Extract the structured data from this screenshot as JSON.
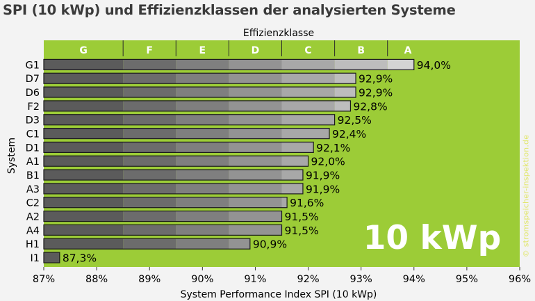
{
  "chart_data": {
    "type": "bar",
    "orientation": "horizontal",
    "title": "SPI (10 kWp) und Effizienzklassen der analysierten Systeme",
    "top_axis_label": "Effizienzklasse",
    "xlabel": "System Performance Index SPI (10 kWp)",
    "ylabel": "System",
    "xlim": [
      87,
      96
    ],
    "x_ticks": [
      "87%",
      "88%",
      "89%",
      "90%",
      "91%",
      "92%",
      "93%",
      "94%",
      "95%",
      "96%"
    ],
    "tick_values": [
      87,
      88,
      89,
      90,
      91,
      92,
      93,
      94,
      95,
      96
    ],
    "efficiency_classes": [
      {
        "name": "G",
        "from": 87.0,
        "to": 88.5,
        "color": "#5b5b5b"
      },
      {
        "name": "F",
        "from": 88.5,
        "to": 89.5,
        "color": "#6c6c6c"
      },
      {
        "name": "E",
        "from": 89.5,
        "to": 90.5,
        "color": "#7f7f7f"
      },
      {
        "name": "D",
        "from": 90.5,
        "to": 91.5,
        "color": "#939393"
      },
      {
        "name": "C",
        "from": 91.5,
        "to": 92.5,
        "color": "#a8a8a8"
      },
      {
        "name": "B",
        "from": 92.5,
        "to": 93.5,
        "color": "#bdbdbd"
      },
      {
        "name": "A",
        "from": 93.5,
        "to": 96.0,
        "color": "#d4d4d4"
      }
    ],
    "categories": [
      "G1",
      "D7",
      "D6",
      "F2",
      "D3",
      "C1",
      "D1",
      "A1",
      "B1",
      "A3",
      "C2",
      "A2",
      "A4",
      "H1",
      "I1"
    ],
    "values": [
      94.0,
      92.9,
      92.9,
      92.8,
      92.5,
      92.4,
      92.1,
      92.0,
      91.9,
      91.9,
      91.6,
      91.5,
      91.5,
      90.9,
      87.3
    ],
    "value_labels": [
      "94,0%",
      "92,9%",
      "92,9%",
      "92,8%",
      "92,5%",
      "92,4%",
      "92,1%",
      "92,0%",
      "91,9%",
      "91,9%",
      "91,6%",
      "91,5%",
      "91,5%",
      "90,9%",
      "87,3%"
    ],
    "big_label": "10 kWp",
    "watermark": "© stromspeicher-inspektion.de"
  },
  "colors": {
    "plot_background": "#9ccc37",
    "bar_outline": "#1a1a1a",
    "big_label": "#ffffff",
    "class_label": "#ffffff",
    "watermark": "#e1e66a",
    "page_background": "#f3f3f3"
  }
}
